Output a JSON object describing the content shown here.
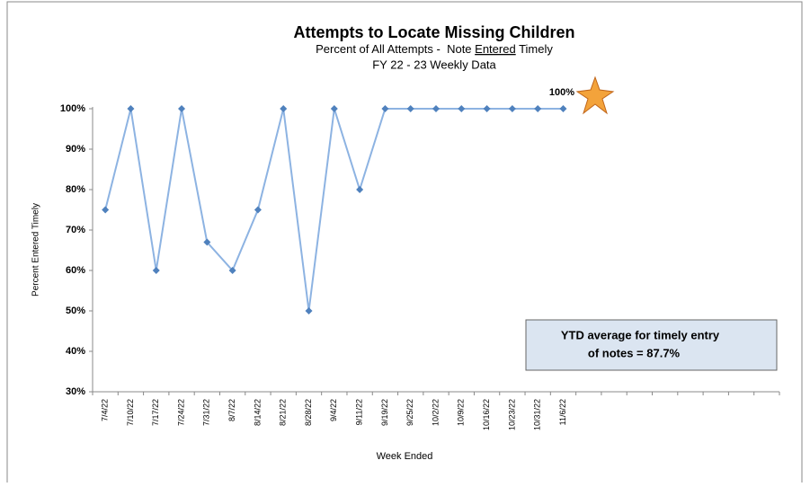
{
  "chart_data": {
    "type": "line",
    "title": "Attempts to Locate Missing Children",
    "subtitle": [
      "Percent of All Attempts -  Note ",
      "Entered",
      " Timely"
    ],
    "subtitle2": "FY 22 - 23 Weekly Data",
    "y_label": "Percent Entered Timely",
    "x_label": "Week Ended",
    "categories": [
      "7/4/22",
      "7/10/22",
      "7/17/22",
      "7/24/22",
      "7/31/22",
      "8/7/22",
      "8/14/22",
      "8/21/22",
      "8/28/22",
      "9/4/22",
      "9/11/22",
      "9/19/22",
      "9/25/22",
      "10/2/22",
      "10/9/22",
      "10/16/22",
      "10/23/22",
      "10/31/22",
      "11/6/22",
      null,
      null,
      null,
      null,
      null,
      null,
      null,
      null
    ],
    "series": [
      {
        "name": "Percent Entered Timely",
        "color": "#8db3e2",
        "values": [
          75,
          100,
          60,
          100,
          67,
          60,
          75,
          100,
          50,
          100,
          80,
          100,
          100,
          100,
          100,
          100,
          100,
          100,
          100,
          null,
          null,
          null,
          null,
          null,
          null,
          null,
          null
        ]
      }
    ],
    "ylim": [
      30,
      100
    ],
    "yticks": [
      {
        "value": 30,
        "label": "30%"
      },
      {
        "value": 40,
        "label": "40%"
      },
      {
        "value": 50,
        "label": "50%"
      },
      {
        "value": 60,
        "label": "60%"
      },
      {
        "value": 70,
        "label": "70%"
      },
      {
        "value": 80,
        "label": "80%"
      },
      {
        "value": 90,
        "label": "90%"
      },
      {
        "value": 100,
        "label": "100%"
      }
    ],
    "grid": false,
    "annotation": "100%",
    "note_box": [
      "YTD average for timely entry",
      "of notes =  87.7%"
    ]
  }
}
